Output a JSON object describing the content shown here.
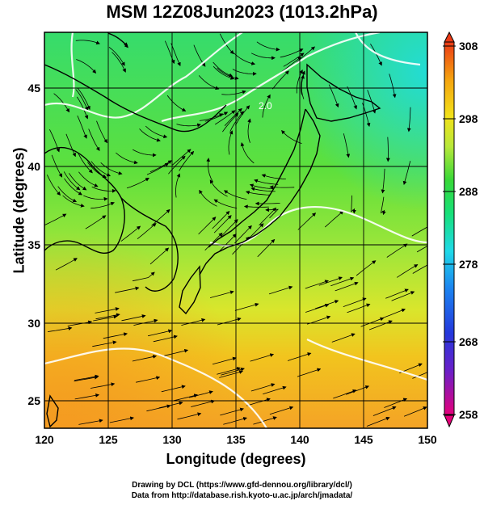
{
  "title": "MSM 12Z08Jun2023 (1013.2hPa)",
  "chart_data": {
    "type": "heatmap",
    "title": "MSM 12Z08Jun2023 (1013.2hPa)",
    "xlabel": "Longitude (degrees)",
    "ylabel": "Latitude  (degrees)",
    "xlim": [
      120,
      150
    ],
    "ylim": [
      22.4,
      47.6
    ],
    "x_ticks": [
      "120",
      "125",
      "130",
      "135",
      "140",
      "145",
      "150"
    ],
    "y_ticks": [
      "25",
      "30",
      "35",
      "40",
      "45"
    ],
    "grid": true,
    "colorbar": {
      "range": [
        258,
        308
      ],
      "ticks": [
        "308",
        "298",
        "288",
        "278",
        "268",
        "258"
      ],
      "colors": [
        "#e6007a",
        "#3b2fd6",
        "#1c7bf0",
        "#1fd9e8",
        "#17e07a",
        "#35d93a",
        "#b8e83a",
        "#f2e21a",
        "#f5a30f",
        "#ec3a16"
      ]
    },
    "contour_label": "2.0",
    "background_colors": {
      "north": "#38dd6a",
      "central": "#76e63a",
      "south": "#f5a324",
      "northeast": "#2adfb8"
    }
  },
  "credits": {
    "line1": "Drawing by DCL (https://www.gfd-dennou.org/library/dcl/)",
    "line2": "Data from http://database.rish.kyoto-u.ac.jp/arch/jmadata/"
  }
}
